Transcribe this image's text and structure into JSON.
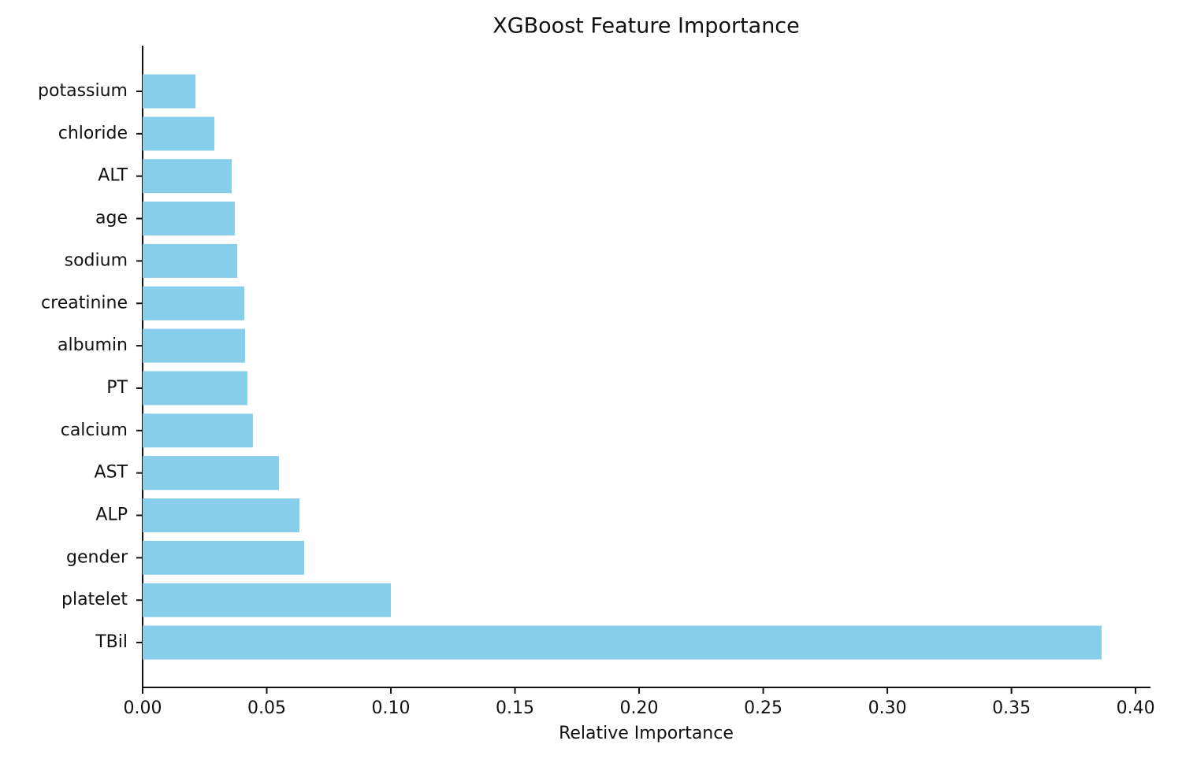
{
  "chart_data": {
    "type": "barh",
    "title": "XGBoost Feature Importance",
    "x_label": "Relative Importance",
    "categories": [
      "potassium",
      "chloride",
      "ALT",
      "age",
      "sodium",
      "creatinine",
      "albumin",
      "PT",
      "calcium",
      "AST",
      "ALP",
      "gender",
      "platelet",
      "TBil"
    ],
    "values": [
      0.0213,
      0.0289,
      0.0359,
      0.0371,
      0.0381,
      0.041,
      0.0413,
      0.0422,
      0.0444,
      0.0549,
      0.0632,
      0.0651,
      0.1,
      0.3863
    ],
    "color": "#87ceeb",
    "xlim": [
      0,
      0.406
    ],
    "xticks": [
      {
        "value": 0,
        "label": "0.00"
      },
      {
        "value": 0.05,
        "label": "0.05"
      },
      {
        "value": 0.1,
        "label": "0.10"
      },
      {
        "value": 0.15,
        "label": "0.15"
      },
      {
        "value": 0.2,
        "label": "0.20"
      },
      {
        "value": 0.25,
        "label": "0.25"
      },
      {
        "value": 0.3,
        "label": "0.30"
      },
      {
        "value": 0.35,
        "label": "0.35"
      },
      {
        "value": 0.4,
        "label": "0.40"
      }
    ],
    "grid": false
  }
}
